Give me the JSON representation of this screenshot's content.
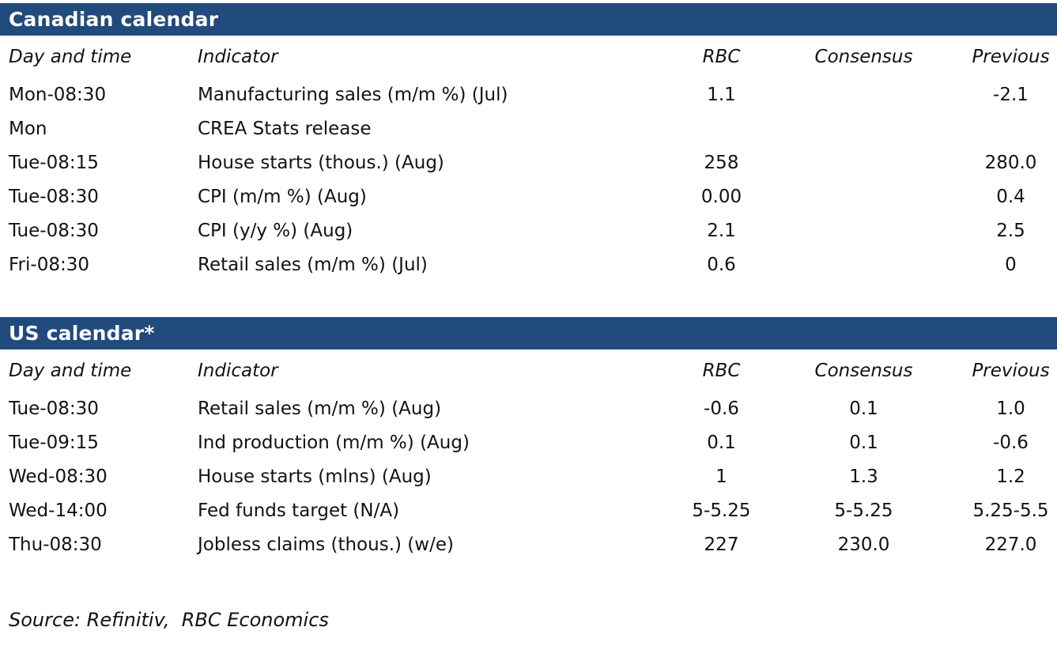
{
  "colors": {
    "title_bar_background": "#214B7D",
    "title_bar_text": "#FFFFFF",
    "body_text": "#121212"
  },
  "canadian": {
    "title": "Canadian calendar",
    "columns": [
      "Day and time",
      "Indicator",
      "RBC",
      "Consensus",
      "Previous"
    ],
    "rows": [
      {
        "day": "Mon-08:30",
        "indicator": "Manufacturing sales (m/m %) (Jul)",
        "rbc": "1.1",
        "consensus": "",
        "previous": "-2.1"
      },
      {
        "day": "Mon",
        "indicator": "CREA Stats release",
        "rbc": "",
        "consensus": "",
        "previous": ""
      },
      {
        "day": "Tue-08:15",
        "indicator": "House starts (thous.) (Aug)",
        "rbc": "258",
        "consensus": "",
        "previous": "280.0"
      },
      {
        "day": "Tue-08:30",
        "indicator": "CPI (m/m %) (Aug)",
        "rbc": "0.00",
        "consensus": "",
        "previous": "0.4"
      },
      {
        "day": "Tue-08:30",
        "indicator": "CPI (y/y %) (Aug)",
        "rbc": "2.1",
        "consensus": "",
        "previous": "2.5"
      },
      {
        "day": "Fri-08:30",
        "indicator": "Retail sales (m/m %) (Jul)",
        "rbc": "0.6",
        "consensus": "",
        "previous": "0"
      }
    ]
  },
  "us": {
    "title": "US calendar*",
    "columns": [
      "Day and time",
      "Indicator",
      "RBC",
      "Consensus",
      "Previous"
    ],
    "rows": [
      {
        "day": "Tue-08:30",
        "indicator": "Retail sales (m/m %) (Aug)",
        "rbc": "-0.6",
        "consensus": "0.1",
        "previous": "1.0"
      },
      {
        "day": "Tue-09:15",
        "indicator": "Ind production (m/m %) (Aug)",
        "rbc": "0.1",
        "consensus": "0.1",
        "previous": "-0.6"
      },
      {
        "day": "Wed-08:30",
        "indicator": "House starts (mlns) (Aug)",
        "rbc": "1",
        "consensus": "1.3",
        "previous": "1.2"
      },
      {
        "day": "Wed-14:00",
        "indicator": "Fed funds target (N/A)",
        "rbc": "5-5.25",
        "consensus": "5-5.25",
        "previous": "5.25-5.5"
      },
      {
        "day": "Thu-08:30",
        "indicator": "Jobless claims (thous.) (w/e)",
        "rbc": "227",
        "consensus": "230.0",
        "previous": "227.0"
      }
    ]
  },
  "footer": {
    "source": "Source: Refinitiv,  RBC Economics"
  }
}
